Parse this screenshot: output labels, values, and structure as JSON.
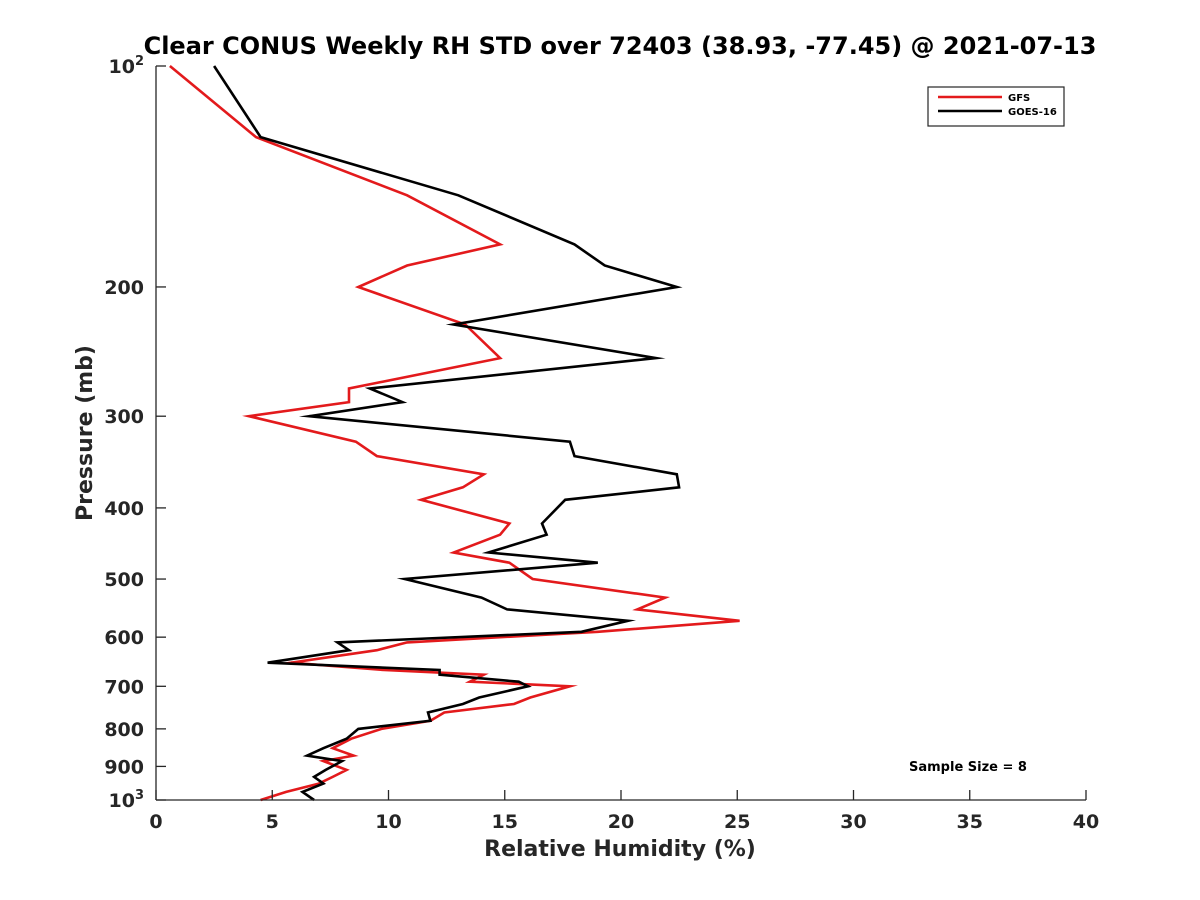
{
  "chart_data": {
    "type": "line",
    "title": "Clear CONUS Weekly RH STD over 72403 (38.93, -77.45) @ 2021-07-13",
    "xlabel": "Relative Humidity (%)",
    "ylabel": "Pressure (mb)",
    "xlim": [
      0,
      40
    ],
    "ylim": [
      100,
      1000
    ],
    "y_scale": "log",
    "y_reversed": true,
    "grid": false,
    "legend_position": "top-right",
    "x_ticks": [
      "0",
      "5",
      "10",
      "15",
      "20",
      "25",
      "30",
      "35",
      "40"
    ],
    "y_ticks": [
      {
        "value": 100,
        "base": "10",
        "exp": "2"
      },
      {
        "value": 200,
        "label": "200"
      },
      {
        "value": 300,
        "label": "300"
      },
      {
        "value": 400,
        "label": "400"
      },
      {
        "value": 500,
        "label": "500"
      },
      {
        "value": 600,
        "label": "600"
      },
      {
        "value": 700,
        "label": "700"
      },
      {
        "value": 800,
        "label": "800"
      },
      {
        "value": 900,
        "label": "900"
      },
      {
        "value": 1000,
        "base": "10",
        "exp": "3"
      }
    ],
    "annotation": "Sample Size = 8",
    "series": [
      {
        "name": "GFS",
        "color": "#e31a1c",
        "points": [
          [
            0.6,
            100
          ],
          [
            4.3,
            125
          ],
          [
            10.8,
            150
          ],
          [
            14.8,
            175
          ],
          [
            10.8,
            187
          ],
          [
            8.7,
            200
          ],
          [
            13.3,
            225
          ],
          [
            14.8,
            250
          ],
          [
            8.3,
            275
          ],
          [
            8.3,
            287
          ],
          [
            4.0,
            300
          ],
          [
            8.6,
            325
          ],
          [
            9.5,
            340
          ],
          [
            14.1,
            360
          ],
          [
            13.2,
            375
          ],
          [
            11.4,
            390
          ],
          [
            15.2,
            420
          ],
          [
            14.8,
            435
          ],
          [
            12.8,
            460
          ],
          [
            15.2,
            475
          ],
          [
            16.2,
            500
          ],
          [
            21.9,
            530
          ],
          [
            20.7,
            550
          ],
          [
            25.1,
            570
          ],
          [
            19.0,
            590
          ],
          [
            10.8,
            610
          ],
          [
            9.5,
            625
          ],
          [
            5.8,
            650
          ],
          [
            9.8,
            665
          ],
          [
            14.1,
            675
          ],
          [
            13.5,
            690
          ],
          [
            17.8,
            700
          ],
          [
            16.1,
            725
          ],
          [
            15.4,
            740
          ],
          [
            12.4,
            760
          ],
          [
            11.8,
            780
          ],
          [
            9.7,
            800
          ],
          [
            8.4,
            825
          ],
          [
            7.6,
            850
          ],
          [
            8.5,
            870
          ],
          [
            7.2,
            885
          ],
          [
            8.2,
            910
          ],
          [
            7.6,
            930
          ],
          [
            7.0,
            950
          ],
          [
            5.6,
            975
          ],
          [
            4.5,
            1000
          ]
        ]
      },
      {
        "name": "GOES-16",
        "color": "#000000",
        "points": [
          [
            2.5,
            100
          ],
          [
            4.5,
            125
          ],
          [
            13.0,
            150
          ],
          [
            18.0,
            175
          ],
          [
            19.3,
            187
          ],
          [
            22.4,
            200
          ],
          [
            12.8,
            225
          ],
          [
            21.5,
            250
          ],
          [
            9.2,
            275
          ],
          [
            10.6,
            287
          ],
          [
            6.6,
            300
          ],
          [
            17.8,
            325
          ],
          [
            18.0,
            340
          ],
          [
            22.4,
            360
          ],
          [
            22.5,
            375
          ],
          [
            17.6,
            390
          ],
          [
            16.6,
            420
          ],
          [
            16.8,
            435
          ],
          [
            14.3,
            460
          ],
          [
            19.0,
            475
          ],
          [
            10.7,
            500
          ],
          [
            14.0,
            530
          ],
          [
            15.1,
            550
          ],
          [
            20.3,
            570
          ],
          [
            18.3,
            590
          ],
          [
            7.8,
            610
          ],
          [
            8.3,
            625
          ],
          [
            4.8,
            650
          ],
          [
            12.2,
            665
          ],
          [
            12.2,
            675
          ],
          [
            15.6,
            690
          ],
          [
            16.0,
            700
          ],
          [
            13.9,
            725
          ],
          [
            13.2,
            740
          ],
          [
            11.7,
            760
          ],
          [
            11.8,
            780
          ],
          [
            8.7,
            800
          ],
          [
            8.2,
            825
          ],
          [
            7.2,
            850
          ],
          [
            6.5,
            870
          ],
          [
            8.0,
            885
          ],
          [
            7.3,
            910
          ],
          [
            6.8,
            930
          ],
          [
            7.2,
            950
          ],
          [
            6.3,
            975
          ],
          [
            6.8,
            1000
          ]
        ]
      }
    ]
  }
}
